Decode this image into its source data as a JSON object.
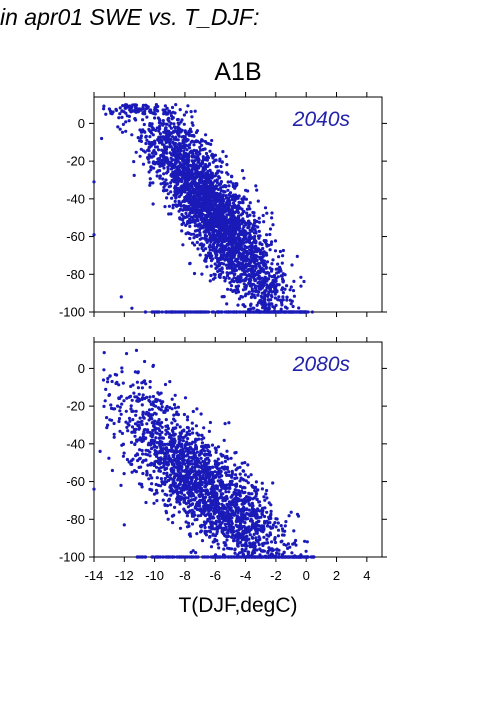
{
  "headline": "in apr01 SWE vs. T_DJF:",
  "scenario": "A1B",
  "xlabel": "T(DJF,degC)",
  "colors": {
    "points": "#1a1ab8",
    "panel_label": "#2222aa",
    "axes": "#000000"
  },
  "chart_data": [
    {
      "type": "scatter",
      "title": "2040s",
      "xlim": [
        -14,
        5
      ],
      "ylim": [
        -100,
        14
      ],
      "xticks": [
        -14,
        -12,
        -10,
        -8,
        -6,
        -4,
        -2,
        0,
        2,
        4
      ],
      "yticks": [
        0,
        -20,
        -40,
        -60,
        -80,
        -100
      ],
      "show_x_tick_labels": false,
      "grid": false,
      "cloud": {
        "count": 3200,
        "t_range": [
          -13.5,
          0.5
        ],
        "core": {
          "t_start": -9.5,
          "swe_at_start": -12,
          "t_end": -2.5,
          "swe_at_end": -85
        },
        "floor_value": -100,
        "floor_t_range": [
          -11,
          0
        ],
        "outliers": [
          {
            "x": -14,
            "y": -31
          },
          {
            "x": -13.5,
            "y": -8
          },
          {
            "x": -12.2,
            "y": -92
          },
          {
            "x": -11.5,
            "y": -98
          },
          {
            "x": -14,
            "y": -59
          }
        ]
      }
    },
    {
      "type": "scatter",
      "title": "2080s",
      "xlim": [
        -14,
        5
      ],
      "ylim": [
        -100,
        14
      ],
      "xticks": [
        -14,
        -12,
        -10,
        -8,
        -6,
        -4,
        -2,
        0,
        2,
        4
      ],
      "yticks": [
        0,
        -20,
        -40,
        -60,
        -80,
        -100
      ],
      "show_x_tick_labels": true,
      "grid": false,
      "cloud": {
        "count": 2300,
        "t_range": [
          -13.5,
          0.5
        ],
        "core": {
          "t_start": -11,
          "swe_at_start": -32,
          "t_end": -2,
          "swe_at_end": -97
        },
        "floor_value": -100,
        "floor_t_range": [
          -12,
          0.5
        ],
        "outliers": [
          {
            "x": -14,
            "y": -64
          },
          {
            "x": -13.6,
            "y": -44
          },
          {
            "x": -9,
            "y": -7
          },
          {
            "x": -10.3,
            "y": -10
          },
          {
            "x": -12,
            "y": -83
          }
        ]
      }
    }
  ]
}
